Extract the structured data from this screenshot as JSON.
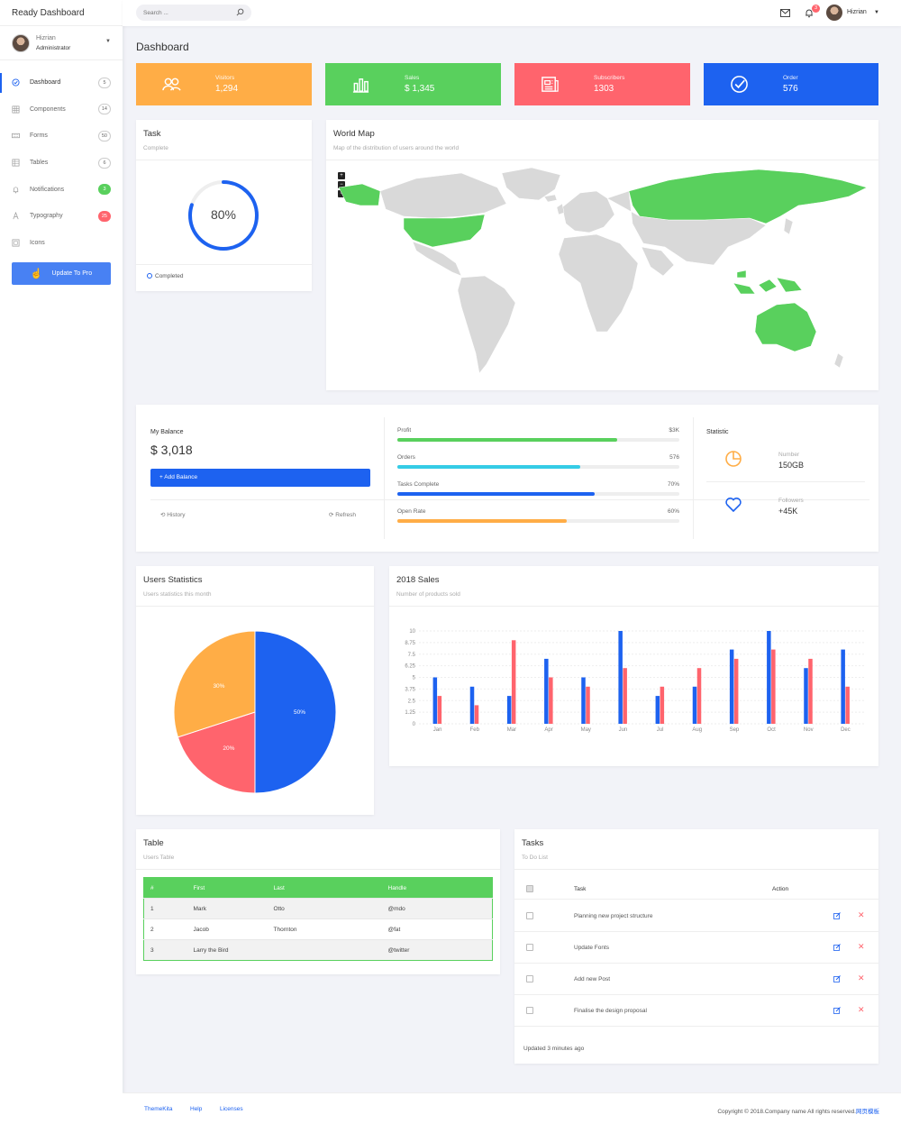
{
  "brand": "Ready Dashboard",
  "user": {
    "name": "Hizrian",
    "role": "Administrator"
  },
  "sidebar": {
    "items": [
      {
        "label": "Dashboard",
        "badge": "5",
        "icon": "dashboard-icon"
      },
      {
        "label": "Components",
        "badge": "14",
        "icon": "grid-icon"
      },
      {
        "label": "Forms",
        "badge": "50",
        "icon": "keyboard-icon"
      },
      {
        "label": "Tables",
        "badge": "6",
        "icon": "table-icon"
      },
      {
        "label": "Notifications",
        "badge": "3",
        "icon": "bell-icon"
      },
      {
        "label": "Typography",
        "badge": "25",
        "icon": "text-icon"
      },
      {
        "label": "Icons",
        "badge": "",
        "icon": "icons-grid-icon"
      }
    ],
    "pro_button": "Update To Pro"
  },
  "topbar": {
    "search_placeholder": "Search ...",
    "notification_count": "3",
    "user_name": "Hizrian"
  },
  "page_title": "Dashboard",
  "stats": [
    {
      "label": "Visitors",
      "value": "1,294",
      "color": "#ffad46",
      "icon": "users-icon"
    },
    {
      "label": "Sales",
      "value": "$ 1,345",
      "color": "#59d05d",
      "icon": "bar-chart-icon"
    },
    {
      "label": "Subscribers",
      "value": "1303",
      "color": "#ff646d",
      "icon": "newspaper-icon"
    },
    {
      "label": "Order",
      "value": "576",
      "color": "#1d62f0",
      "icon": "check-circle-icon"
    }
  ],
  "task_card": {
    "title": "Task",
    "subtitle": "Complete",
    "progress_label": "80%",
    "progress": 0.8,
    "footer": "Completed"
  },
  "map_card": {
    "title": "World Map",
    "subtitle": "Map of the distribution of users around the world"
  },
  "balance": {
    "label": "My Balance",
    "value": "$ 3,018",
    "add_button": "+ Add Balance",
    "history": "History",
    "refresh": "Refresh"
  },
  "progress_bars": [
    {
      "label": "Profit",
      "value": "$3K",
      "percent": 78,
      "color": "#59d05d"
    },
    {
      "label": "Orders",
      "value": "576",
      "percent": 65,
      "color": "#35cce6"
    },
    {
      "label": "Tasks Complete",
      "value": "70%",
      "percent": 70,
      "color": "#1d62f0"
    },
    {
      "label": "Open Rate",
      "value": "60%",
      "percent": 60,
      "color": "#ffad46"
    }
  ],
  "statistic": {
    "title": "Statistic",
    "items": [
      {
        "label": "Number",
        "value": "150GB",
        "icon": "pie-chart-icon"
      },
      {
        "label": "Followers",
        "value": "+45K",
        "icon": "heart-icon"
      }
    ]
  },
  "users_stats": {
    "title": "Users Statistics",
    "subtitle": "Users statistics this month"
  },
  "sales_card": {
    "title": "2018 Sales",
    "subtitle": "Number of products sold"
  },
  "chart_data": [
    {
      "type": "pie",
      "categories": [
        "",
        "",
        ""
      ],
      "values": [
        50,
        20,
        30
      ],
      "labels": [
        "50%",
        "20%",
        "30%"
      ],
      "colors": [
        "#1d62f0",
        "#ff646d",
        "#ffad46"
      ]
    },
    {
      "type": "bar",
      "categories": [
        "Jan",
        "Feb",
        "Mar",
        "Apr",
        "May",
        "Jun",
        "Jul",
        "Aug",
        "Sep",
        "Oct",
        "Nov",
        "Dec"
      ],
      "series": [
        {
          "values": [
            5,
            4,
            3,
            7,
            5,
            10,
            3,
            4,
            8,
            10,
            6,
            8
          ],
          "color": "#1d62f0"
        },
        {
          "values": [
            3,
            2,
            9,
            5,
            4,
            6,
            4,
            6,
            7,
            8,
            7,
            4
          ],
          "color": "#ff646d"
        }
      ],
      "yticks": [
        "0",
        "1.25",
        "2.5",
        "3.75",
        "5",
        "6.25",
        "7.5",
        "8.75",
        "10"
      ],
      "ylim": [
        0,
        10
      ]
    }
  ],
  "table_card": {
    "title": "Table",
    "subtitle": "Users Table",
    "headers": [
      "#",
      "First",
      "Last",
      "Handle"
    ],
    "rows": [
      [
        "1",
        "Mark",
        "Otto",
        "@mdo"
      ],
      [
        "2",
        "Jacob",
        "Thornton",
        "@fat"
      ],
      [
        "3",
        "Larry the Bird",
        "",
        "@twitter"
      ]
    ]
  },
  "tasks_card": {
    "title": "Tasks",
    "subtitle": "To Do List",
    "col_task": "Task",
    "col_action": "Action",
    "items": [
      "Planning new project structure",
      "Update Fonts",
      "Add new Post",
      "Finalise the design proposal"
    ],
    "footer": "Updated 3 minutes ago"
  },
  "footer": {
    "links": [
      "ThemeKita",
      "Help",
      "Licenses"
    ],
    "copyright": "Copyright © 2018.Company name All rights reserved.",
    "copyright_link": "网页模板"
  }
}
